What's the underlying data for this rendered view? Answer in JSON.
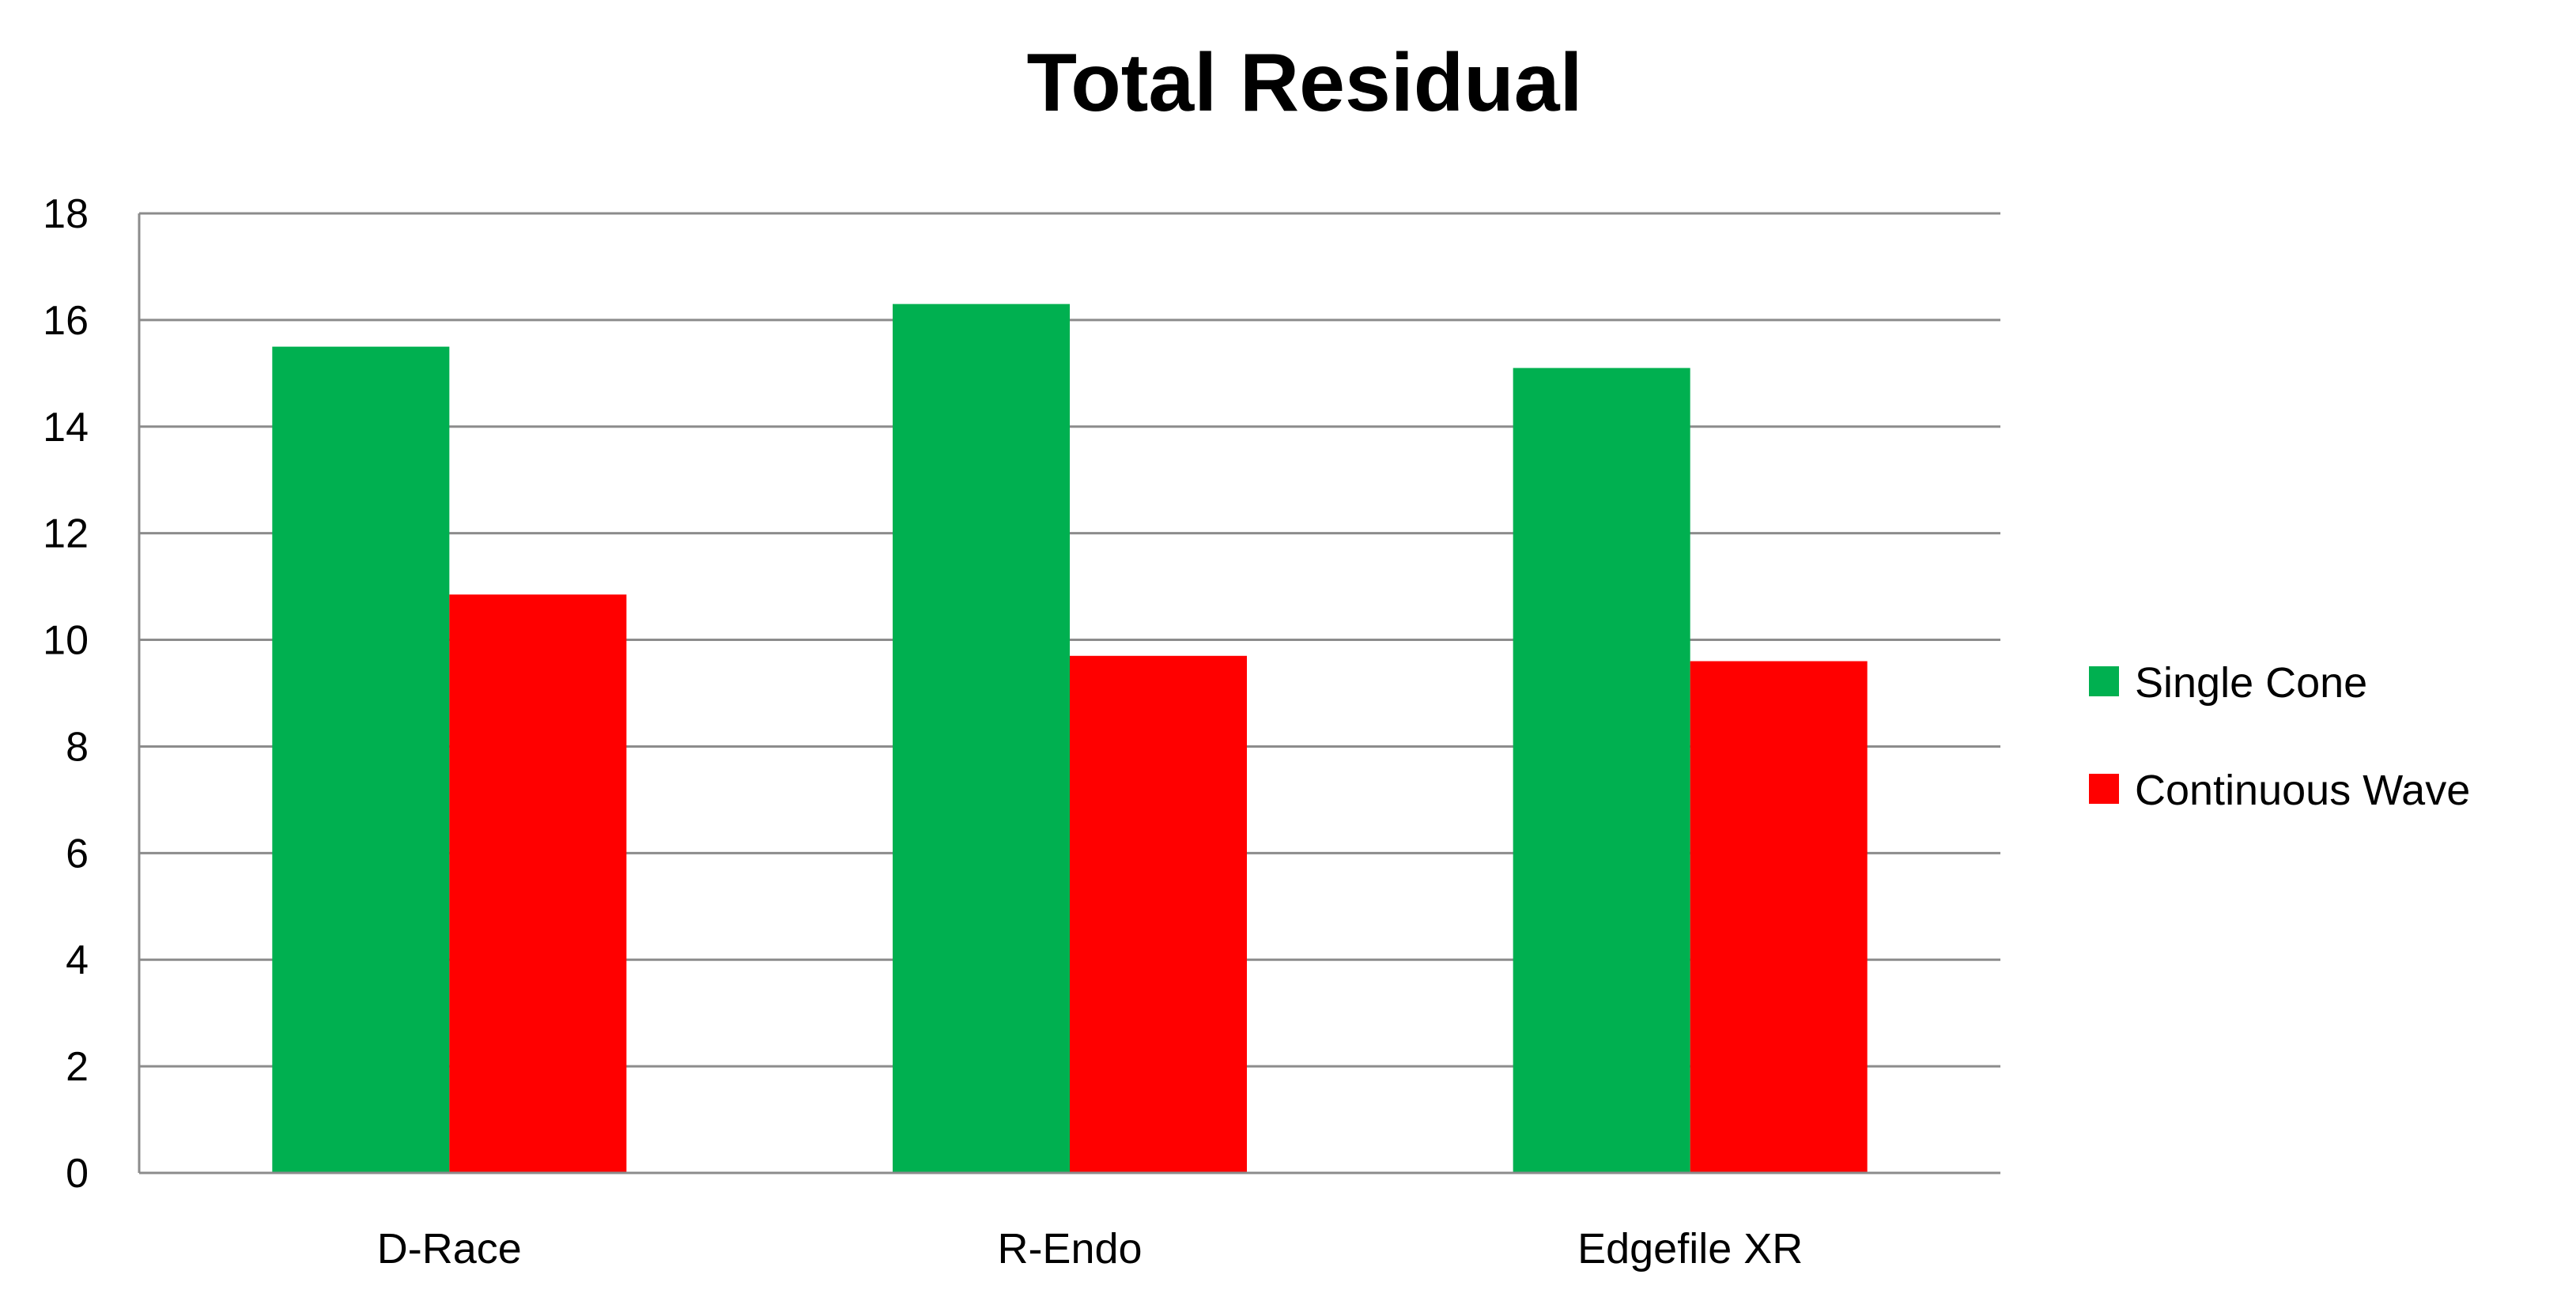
{
  "chart_data": {
    "type": "bar",
    "title": "Total Residual",
    "xlabel": "",
    "ylabel": "",
    "categories": [
      "D-Race",
      "R-Endo",
      "Edgefile XR"
    ],
    "series": [
      {
        "name": "Single Cone",
        "color": "#00b050",
        "values": [
          15.5,
          16.3,
          15.1
        ]
      },
      {
        "name": "Continuous Wave",
        "color": "#ff0000",
        "values": [
          10.85,
          9.7,
          9.6
        ]
      }
    ],
    "ylim": [
      0,
      18
    ],
    "yticks": [
      "0",
      "2",
      "4",
      "6",
      "8",
      "10",
      "12",
      "14",
      "16",
      "18"
    ],
    "grid": true,
    "legend_position": "right"
  }
}
